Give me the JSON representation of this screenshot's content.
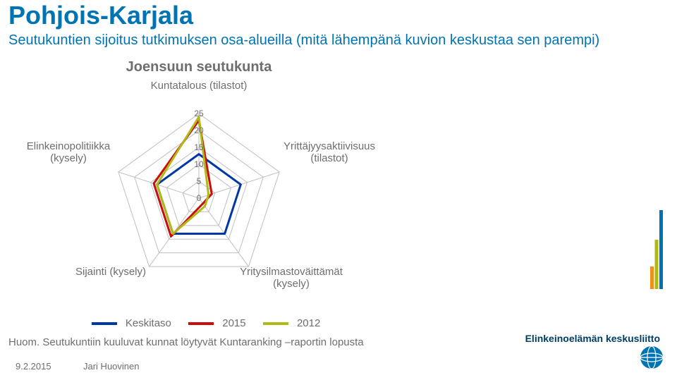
{
  "title": "Pohjois-Karjala",
  "subtitle": "Seutukuntien sijoitus tutkimuksen osa-alueilla (mitä lähempänä kuvion keskustaa sen parempi)",
  "chart": {
    "title": "Joensuun seutukunta",
    "type": "radar",
    "axes": [
      "Kuntatalous (tilastot)",
      "Yrittäjyysaktiivisuus (tilastot)",
      "Yritysilmastoväittämät (kysely)",
      "Sijainti (kysely)",
      "Elinkeinopolitiikka (kysely)"
    ],
    "ticks": [
      0,
      5,
      10,
      15,
      20,
      25
    ],
    "max": 25,
    "grid_color": "#bfbfbf",
    "grid_width": 1,
    "axis_line_color": "#bfbfbf",
    "label_color": "#6e6e6e",
    "label_fontsize": 15,
    "tick_fontsize": 12,
    "background": "#ffffff",
    "series": [
      {
        "name": "Keskitaso",
        "color": "#0037a7",
        "width": 3,
        "values": [
          13,
          13,
          13,
          13,
          13
        ]
      },
      {
        "name": "2015",
        "color": "#c80d0d",
        "width": 3,
        "values": [
          23,
          4,
          2,
          14,
          14
        ]
      },
      {
        "name": "2012",
        "color": "#b0b916",
        "width": 3,
        "values": [
          24,
          3,
          3,
          13,
          13
        ]
      }
    ]
  },
  "legend": [
    {
      "label": "Keskitaso",
      "color": "#0037a7"
    },
    {
      "label": "2015",
      "color": "#c80d0d"
    },
    {
      "label": "2012",
      "color": "#b0b916"
    }
  ],
  "footnote": "Huom. Seutukuntiin kuuluvat kunnat löytyvät Kuntaranking –raportin lopusta",
  "footer": {
    "date": "9.2.2015",
    "author": "Jari Huovinen"
  },
  "logo": {
    "text": "Elinkeinoelämän keskusliitto"
  },
  "side_bars": {
    "colors": [
      "#f28e1c",
      "#b0b916",
      "#0074b3"
    ],
    "heights": [
      32,
      70,
      112
    ]
  }
}
